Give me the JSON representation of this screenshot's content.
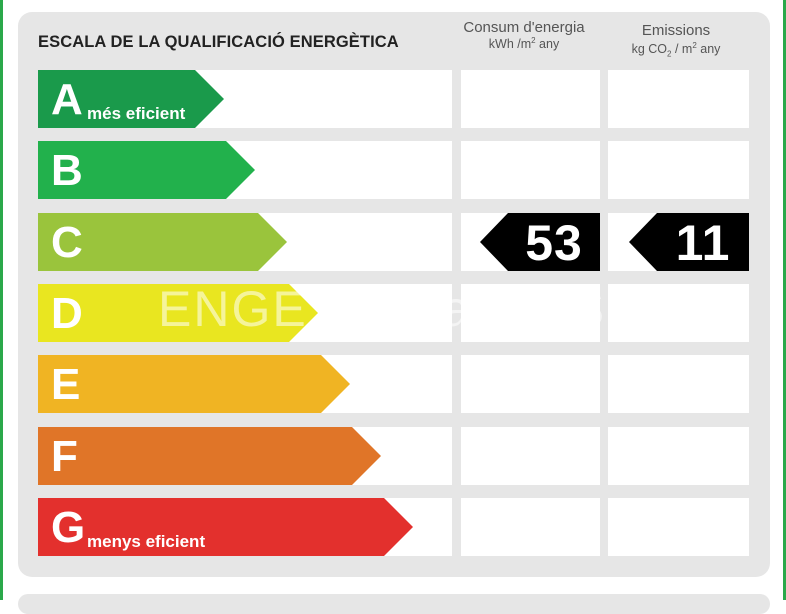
{
  "title": "ESCALA DE LA QUALIFICACIÓ ENERGÈTICA",
  "columns": {
    "consum": {
      "line1": "Consum d'energia",
      "unit_a": "kWh /m",
      "unit_sup": "2",
      "unit_b": " any"
    },
    "emissions": {
      "line1": "Emissions",
      "unit_a": "kg CO",
      "unit_sub": "2",
      "unit_b": " / m",
      "unit_sup": "2",
      "unit_c": " any"
    }
  },
  "ratings": [
    {
      "letter": "A",
      "label": "més eficient",
      "color": "#1a9a4b"
    },
    {
      "letter": "B",
      "label": "",
      "color": "#22b14c"
    },
    {
      "letter": "C",
      "label": "",
      "color": "#9ac43c"
    },
    {
      "letter": "D",
      "label": "",
      "color": "#e9e620"
    },
    {
      "letter": "E",
      "label": "",
      "color": "#f0b423"
    },
    {
      "letter": "F",
      "label": "",
      "color": "#e07528"
    },
    {
      "letter": "G",
      "label": "menys eficient",
      "color": "#e3302d"
    }
  ],
  "current": {
    "rating": "C",
    "consum": "53",
    "emissions": "11"
  },
  "watermark": "ENGE habitaclia S"
}
